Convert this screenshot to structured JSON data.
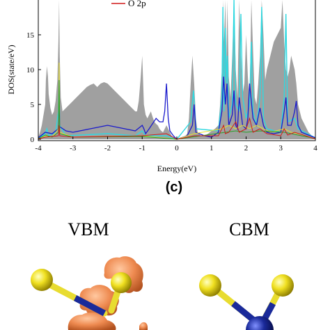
{
  "chart_data": {
    "type": "area",
    "xlabel": "Energy(eV)",
    "ylabel": "DOS(state/eV)",
    "xlim": [
      -4,
      4
    ],
    "ylim": [
      0,
      20
    ],
    "x_ticks": [
      "-4",
      "-3",
      "-2",
      "-1",
      "0",
      "1",
      "2",
      "3",
      "4"
    ],
    "y_ticks": [
      "0",
      "5",
      "10",
      "15"
    ],
    "legend": [
      {
        "label": "O  2p",
        "color": "#d01818"
      }
    ],
    "colors": {
      "total": "#a0a0a0",
      "blue": "#1a1acc",
      "cyan": "#30d8e0",
      "red": "#d01818",
      "yellow": "#e8e030",
      "green": "#28a028"
    },
    "series": [
      {
        "key": "total",
        "x": [
          -4,
          -3.95,
          -3.9,
          -3.85,
          -3.8,
          -3.78,
          -3.75,
          -3.72,
          -3.7,
          -3.65,
          -3.6,
          -3.55,
          -3.5,
          -3.45,
          -3.42,
          -3.4,
          -3.38,
          -3.35,
          -3.3,
          -3.2,
          -3.1,
          -3.0,
          -2.9,
          -2.8,
          -2.7,
          -2.6,
          -2.5,
          -2.4,
          -2.3,
          -2.2,
          -2.1,
          -2.0,
          -1.9,
          -1.8,
          -1.7,
          -1.6,
          -1.5,
          -1.4,
          -1.3,
          -1.2,
          -1.15,
          -1.1,
          -1.05,
          -1.0,
          -0.95,
          -0.9,
          -0.85,
          -0.8,
          -0.75,
          -0.7,
          -0.65,
          -0.6,
          -0.55,
          -0.5,
          -0.45,
          -0.4,
          -0.35,
          -0.3,
          -0.25,
          -0.2,
          -0.15,
          -0.1,
          -0.05,
          0,
          0.1,
          0.2,
          0.3,
          0.35,
          0.4,
          0.45,
          0.5,
          0.55,
          0.6,
          0.7,
          0.8,
          0.9,
          1.0,
          1.1,
          1.2,
          1.25,
          1.3,
          1.33,
          1.36,
          1.4,
          1.43,
          1.46,
          1.5,
          1.55,
          1.6,
          1.65,
          1.7,
          1.75,
          1.8,
          1.85,
          1.9,
          1.95,
          2.0,
          2.05,
          2.1,
          2.15,
          2.2,
          2.25,
          2.3,
          2.35,
          2.4,
          2.45,
          2.5,
          2.55,
          2.6,
          2.7,
          2.8,
          2.9,
          3.0,
          3.05,
          3.1,
          3.15,
          3.2,
          3.25,
          3.3,
          3.35,
          3.4,
          3.45,
          3.5,
          3.55,
          3.6,
          3.7,
          3.8,
          3.9,
          4.0
        ],
        "y": [
          0.3,
          1.0,
          2.0,
          3.5,
          5.0,
          8.5,
          10.5,
          9.0,
          6.5,
          4.5,
          3.5,
          4.0,
          5.5,
          8.5,
          14.0,
          20,
          12.0,
          6.0,
          4.0,
          4.5,
          5.0,
          5.5,
          6.0,
          6.5,
          7.0,
          7.5,
          7.8,
          8.0,
          7.5,
          8.0,
          8.2,
          8.0,
          7.5,
          7.0,
          6.5,
          6.0,
          5.5,
          5.0,
          4.5,
          4.0,
          4.0,
          5.5,
          8.5,
          12.0,
          5.0,
          3.5,
          3.0,
          3.5,
          4.0,
          3.2,
          2.5,
          2.2,
          2.0,
          1.5,
          1.2,
          1.0,
          1.5,
          2.0,
          1.5,
          1.0,
          0.5,
          0.2,
          0.05,
          0.0,
          0.05,
          0.2,
          0.8,
          3.0,
          8.0,
          12.0,
          8.0,
          3.0,
          1.0,
          0.5,
          0.5,
          0.8,
          1.2,
          1.5,
          2.0,
          5.0,
          10.0,
          20,
          14.0,
          20,
          11.0,
          20,
          9.0,
          6.0,
          12.0,
          20,
          10.0,
          6.0,
          20,
          12.0,
          6.5,
          8.0,
          15.0,
          9.0,
          5.0,
          20,
          13.0,
          6.0,
          5.0,
          8.0,
          12.0,
          20,
          15.0,
          8.5,
          10.0,
          12.0,
          14.0,
          15.0,
          16.0,
          20,
          14.0,
          10.0,
          9.0,
          10.0,
          12.0,
          11.0,
          10.0,
          8.0,
          5.0,
          4.0,
          3.0,
          2.0,
          1.0,
          0.5,
          0.3
        ]
      },
      {
        "key": "cyan",
        "x": [
          -4,
          -3.8,
          -3.75,
          -3.7,
          -3.5,
          -3.42,
          -3.4,
          -3.38,
          -3.2,
          -2.0,
          -1.2,
          -1.0,
          -0.9,
          -0.5,
          -0.3,
          0,
          0.4,
          0.48,
          0.55,
          1.2,
          1.3,
          1.33,
          1.36,
          1.4,
          1.43,
          1.46,
          1.5,
          1.6,
          1.65,
          1.7,
          1.8,
          1.85,
          1.9,
          2.0,
          2.1,
          2.15,
          2.2,
          2.3,
          2.4,
          2.45,
          2.5,
          2.6,
          3.0,
          3.1,
          3.15,
          3.2,
          3.4,
          3.5,
          4.0
        ],
        "y": [
          0.1,
          0.8,
          1.5,
          0.5,
          1.0,
          4.0,
          7.5,
          2.0,
          0.5,
          0.8,
          0.5,
          1.2,
          0.5,
          0.5,
          0.5,
          0.0,
          2.5,
          7.0,
          1.5,
          1.2,
          6.0,
          19.0,
          4.0,
          16.0,
          8.0,
          12.0,
          3.0,
          5.0,
          20,
          5.0,
          4.0,
          18.0,
          6.0,
          3.0,
          5.0,
          14.0,
          4.0,
          2.0,
          6.0,
          19.0,
          3.0,
          1.5,
          1.0,
          6.0,
          18.0,
          2.5,
          3.0,
          1.5,
          0.2
        ]
      },
      {
        "key": "blue",
        "x": [
          -4,
          -3.8,
          -3.6,
          -3.42,
          -3.4,
          -3.38,
          -3.2,
          -3.0,
          -2.8,
          -2.5,
          -2.2,
          -2.0,
          -1.8,
          -1.5,
          -1.2,
          -1.0,
          -0.95,
          -0.9,
          -0.8,
          -0.6,
          -0.5,
          -0.4,
          -0.35,
          -0.3,
          -0.25,
          -0.2,
          -0.1,
          0,
          0.3,
          0.45,
          0.5,
          0.55,
          0.8,
          1.0,
          1.2,
          1.3,
          1.35,
          1.4,
          1.45,
          1.5,
          1.6,
          1.65,
          1.7,
          1.75,
          1.8,
          1.9,
          2.0,
          2.05,
          2.1,
          2.2,
          2.3,
          2.4,
          2.5,
          2.6,
          2.8,
          3.0,
          3.1,
          3.15,
          3.2,
          3.3,
          3.4,
          3.45,
          3.5,
          3.6,
          4.0
        ],
        "y": [
          0.2,
          1.0,
          0.8,
          1.5,
          7.0,
          1.8,
          1.2,
          1.0,
          1.2,
          1.5,
          1.8,
          2.0,
          1.8,
          1.5,
          1.2,
          2.0,
          1.5,
          0.8,
          1.5,
          3.0,
          2.5,
          2.5,
          4.0,
          8.0,
          3.0,
          1.2,
          0.5,
          0.0,
          0.5,
          2.0,
          5.0,
          1.0,
          0.5,
          0.3,
          1.0,
          4.0,
          9.0,
          5.0,
          8.0,
          2.0,
          3.5,
          7.0,
          2.0,
          1.5,
          6.0,
          2.0,
          1.5,
          3.0,
          8.0,
          3.0,
          2.0,
          4.5,
          2.0,
          1.0,
          0.8,
          1.0,
          4.0,
          6.0,
          2.0,
          2.0,
          4.0,
          5.5,
          2.0,
          1.0,
          0.2
        ]
      },
      {
        "key": "yellow",
        "x": [
          -4,
          -3.8,
          -3.6,
          -3.42,
          -3.4,
          -3.38,
          -3.0,
          -1.0,
          0,
          0.5,
          1.3,
          1.5,
          1.7,
          1.9,
          2.1,
          2.3,
          2.5,
          2.7,
          3.1,
          3.3,
          3.5,
          4.0
        ],
        "y": [
          0.1,
          0.5,
          0.3,
          1.5,
          11.0,
          1.0,
          0.3,
          0.5,
          0.0,
          0.8,
          1.5,
          2.0,
          1.5,
          2.0,
          1.5,
          2.0,
          1.5,
          1.0,
          1.5,
          1.0,
          0.8,
          0.1
        ]
      },
      {
        "key": "green",
        "x": [
          -4,
          -3.8,
          -3.6,
          -3.42,
          -3.4,
          -3.38,
          -3.0,
          -1.0,
          0,
          1.4,
          1.7,
          2.0,
          2.4,
          3.1,
          4.0
        ],
        "y": [
          0.1,
          0.6,
          0.3,
          1.0,
          8.5,
          0.8,
          0.3,
          0.4,
          0.0,
          1.0,
          1.2,
          1.0,
          1.2,
          1.0,
          0.1
        ]
      },
      {
        "key": "red",
        "x": [
          -4,
          -3.8,
          -3.42,
          -3.4,
          -3.38,
          -3.0,
          -2.0,
          -1.0,
          -0.3,
          0,
          0.5,
          1.2,
          1.35,
          1.4,
          1.5,
          1.7,
          1.8,
          2.0,
          2.1,
          2.2,
          2.4,
          2.6,
          3.0,
          3.1,
          3.2,
          3.4,
          4.0
        ],
        "y": [
          0.05,
          0.3,
          0.5,
          2.0,
          0.5,
          0.3,
          0.4,
          0.5,
          0.8,
          0.0,
          0.5,
          0.5,
          2.0,
          0.8,
          1.0,
          2.5,
          1.0,
          1.5,
          3.0,
          1.0,
          1.5,
          0.8,
          0.5,
          1.5,
          0.6,
          1.0,
          0.05
        ]
      }
    ]
  },
  "panel_label": "(c)",
  "band_titles": {
    "vbm": "VBM",
    "cbm": "CBM"
  },
  "structure_colors": {
    "yellow_atom": "#f0e020",
    "blue_atom": "#1a2a9a",
    "orange_lobe": "#ee8a50"
  }
}
